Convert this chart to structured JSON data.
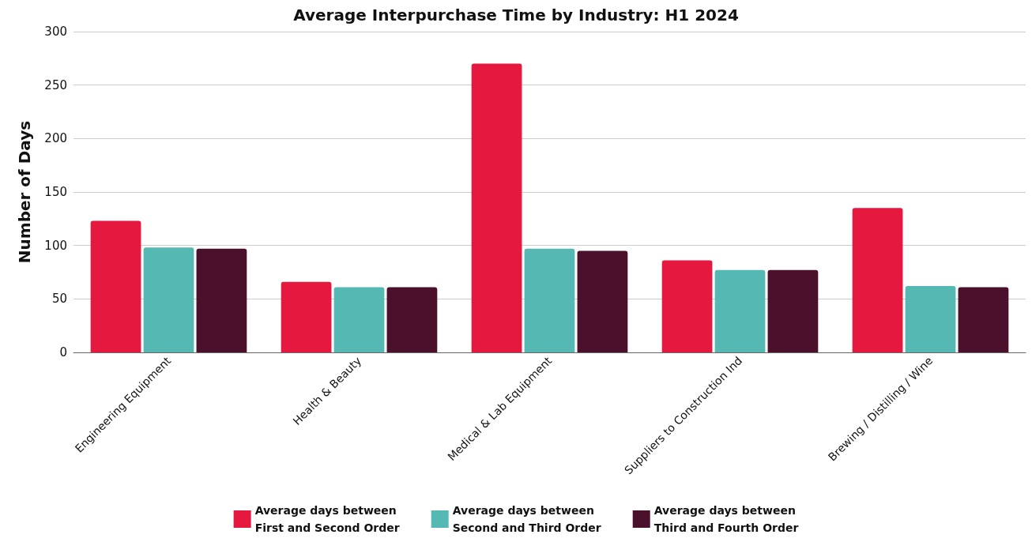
{
  "chart_data": {
    "type": "bar",
    "title": "Average Interpurchase Time by Industry: H1 2024",
    "ylabel": "Number of Days",
    "categories": [
      "Engineering Equipment",
      "Health & Beauty",
      "Medical & Lab Equipment",
      "Suppliers to Construction Ind",
      "Brewing / Distilling / Wine"
    ],
    "series": [
      {
        "name": "Average days between\nFirst and Second Order",
        "color": "#e5183f",
        "values": [
          123,
          66,
          270,
          86,
          135
        ]
      },
      {
        "name": "Average days between\nSecond and Third Order",
        "color": "#55b8b3",
        "values": [
          98,
          61,
          97,
          77,
          62
        ]
      },
      {
        "name": "Average days between\nThird and Fourth Order",
        "color": "#4b102c",
        "values": [
          97,
          61,
          95,
          77,
          61
        ]
      }
    ],
    "ylim": [
      0,
      300
    ],
    "yticks": [
      0,
      50,
      100,
      150,
      200,
      250,
      300
    ],
    "grid": "y",
    "legend": "bottom"
  }
}
